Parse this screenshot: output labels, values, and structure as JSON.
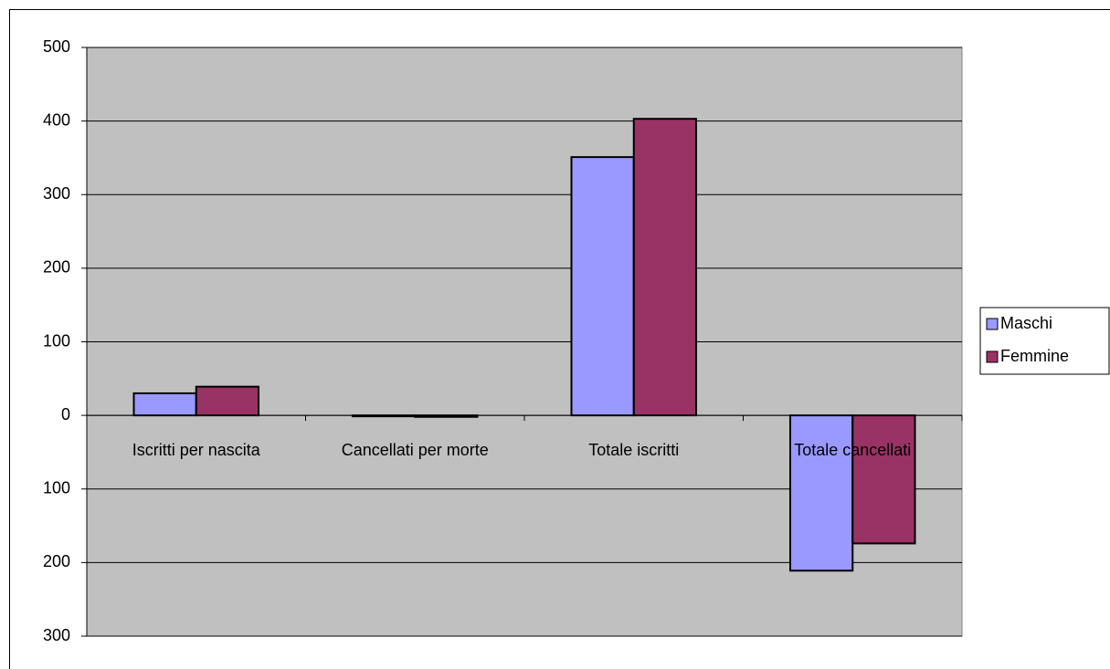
{
  "chart_data": {
    "type": "bar",
    "categories": [
      "Iscritti per nascita",
      "Cancellati per morte",
      "Totale iscritti",
      "Totale cancellati"
    ],
    "series": [
      {
        "name": "Maschi",
        "color": "#9999ff",
        "values": [
          30,
          -1,
          351,
          -211
        ]
      },
      {
        "name": "Femmine",
        "color": "#993366",
        "values": [
          39,
          -2,
          403,
          -174
        ]
      }
    ],
    "ylim": [
      -300,
      500
    ],
    "yticks": [
      {
        "value": -300,
        "label": "300"
      },
      {
        "value": -200,
        "label": "200"
      },
      {
        "value": -100,
        "label": "100"
      },
      0,
      100,
      200,
      300,
      400,
      500
    ],
    "grid": true,
    "legend": "right",
    "background": "#c0c0c0"
  }
}
